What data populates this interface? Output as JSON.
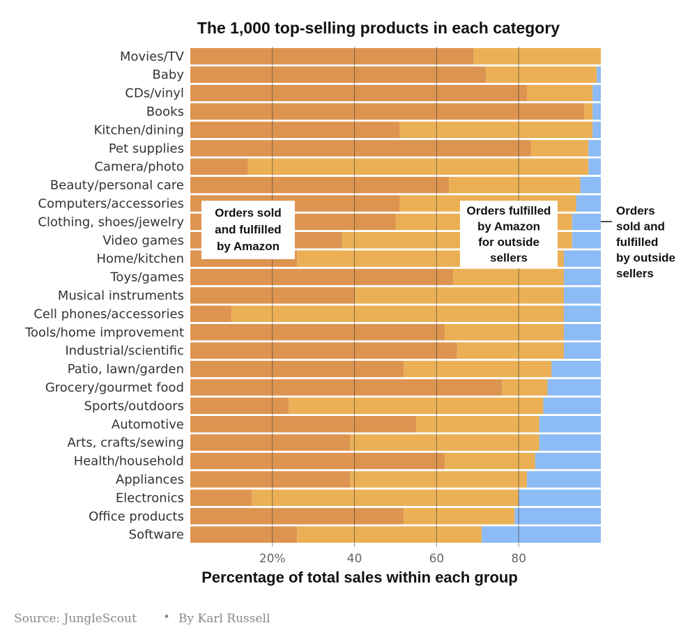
{
  "chart_data": {
    "type": "bar",
    "orientation": "horizontal",
    "stacked": true,
    "title": "The 1,000 top-selling products in each category",
    "xlabel": "Percentage of total sales within each group",
    "ylabel": "",
    "xlim": [
      0,
      100
    ],
    "ticks": [
      {
        "value": 20,
        "label": "20%"
      },
      {
        "value": 40,
        "label": "40"
      },
      {
        "value": 60,
        "label": "60"
      },
      {
        "value": 80,
        "label": "80"
      }
    ],
    "categories": [
      "Movies/TV",
      "Baby",
      "CDs/vinyl",
      "Books",
      "Kitchen/dining",
      "Pet supplies",
      "Camera/photo",
      "Beauty/personal care",
      "Computers/accessories",
      "Clothing, shoes/jewelry",
      "Video games",
      "Home/kitchen",
      "Toys/games",
      "Musical instruments",
      "Cell phones/accessories",
      "Tools/home improvement",
      "Industrial/scientific",
      "Patio, lawn/garden",
      "Grocery/gourmet food",
      "Sports/outdoors",
      "Automotive",
      "Arts, crafts/sewing",
      "Health/household",
      "Appliances",
      "Electronics",
      "Office products",
      "Software"
    ],
    "series": [
      {
        "name": "Orders sold and fulfilled by Amazon",
        "color": "#dd9451",
        "values": [
          69,
          72,
          82,
          96,
          51,
          83,
          14,
          63,
          51,
          50,
          37,
          26,
          64,
          40,
          10,
          62,
          65,
          52,
          76,
          24,
          55,
          39,
          62,
          39,
          15,
          52,
          26
        ]
      },
      {
        "name": "Orders fulfilled by Amazon for outside sellers",
        "color": "#ebb055",
        "values": [
          31,
          27,
          16,
          2,
          47,
          14,
          83,
          32,
          43,
          43,
          56,
          65,
          27,
          51,
          81,
          29,
          26,
          36,
          11,
          62,
          30,
          46,
          22,
          43,
          65,
          27,
          45
        ]
      },
      {
        "name": "Orders sold and fulfilled by outside sellers",
        "color": "#8cbbf5",
        "values": [
          0,
          1,
          2,
          2,
          2,
          3,
          3,
          5,
          6,
          7,
          7,
          9,
          9,
          9,
          9,
          9,
          9,
          12,
          13,
          14,
          15,
          15,
          16,
          18,
          20,
          21,
          29
        ]
      }
    ],
    "annotations": [
      {
        "series": 0,
        "lines": [
          "Orders sold",
          "and fulfilled",
          "by Amazon"
        ]
      },
      {
        "series": 1,
        "lines": [
          "Orders fulfilled",
          "by Amazon",
          "for outside",
          "sellers"
        ]
      },
      {
        "series": 2,
        "lines": [
          "Orders",
          "sold and",
          "fulfilled",
          "by outside",
          "sellers"
        ]
      }
    ]
  },
  "footer": {
    "source": "Source: JungleScout",
    "separator": "•",
    "byline": "By Karl Russell"
  }
}
